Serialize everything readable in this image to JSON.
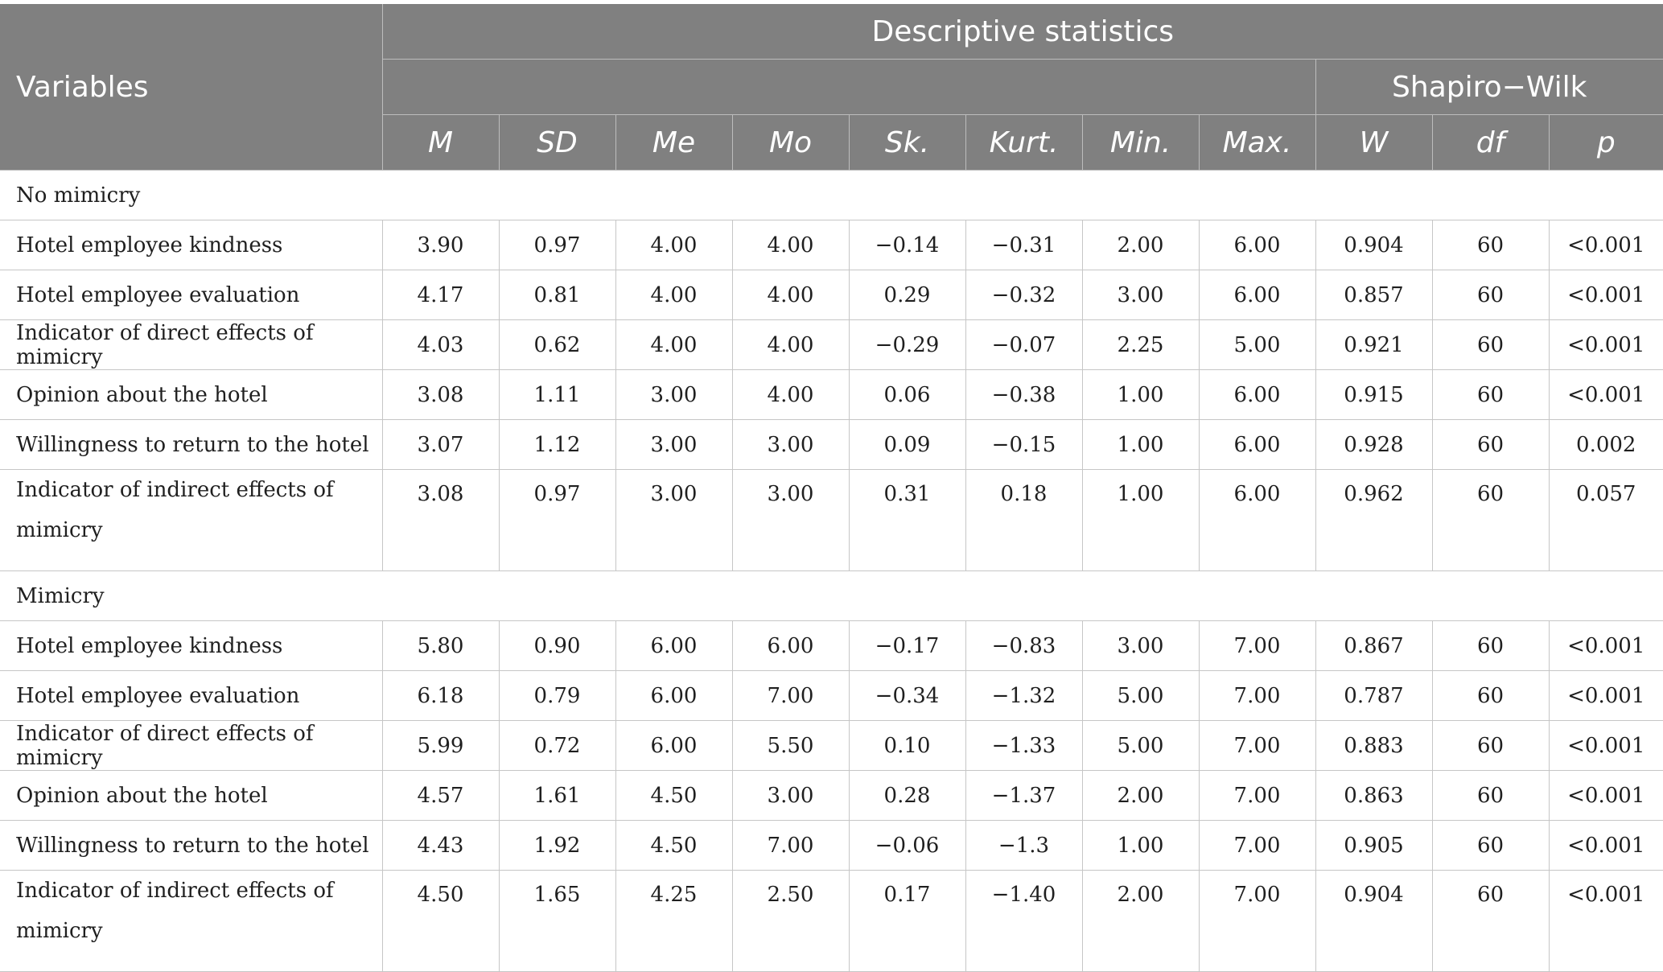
{
  "header": {
    "variables": "Variables",
    "descriptive": "Descriptive statistics",
    "shapiro": "Shapiro−Wilk",
    "columns": [
      "M",
      "SD",
      "Me",
      "Mo",
      "Sk.",
      "Kurt.",
      "Min.",
      "Max.",
      "W",
      "df",
      "p"
    ]
  },
  "groups": [
    {
      "name": "No mimicry",
      "rows": [
        {
          "label": "Hotel employee kindness",
          "values": [
            "3.90",
            "0.97",
            "4.00",
            "4.00",
            "−0.14",
            "−0.31",
            "2.00",
            "6.00",
            "0.904",
            "60",
            "<0.001"
          ]
        },
        {
          "label": "Hotel employee evaluation",
          "values": [
            "4.17",
            "0.81",
            "4.00",
            "4.00",
            "0.29",
            "−0.32",
            "3.00",
            "6.00",
            "0.857",
            "60",
            "<0.001"
          ]
        },
        {
          "label": "Indicator of direct effects of mimicry",
          "values": [
            "4.03",
            "0.62",
            "4.00",
            "4.00",
            "−0.29",
            "−0.07",
            "2.25",
            "5.00",
            "0.921",
            "60",
            "<0.001"
          ]
        },
        {
          "label": "Opinion about the hotel",
          "values": [
            "3.08",
            "1.11",
            "3.00",
            "4.00",
            "0.06",
            "−0.38",
            "1.00",
            "6.00",
            "0.915",
            "60",
            "<0.001"
          ]
        },
        {
          "label": "Willingness to return to the hotel",
          "values": [
            "3.07",
            "1.12",
            "3.00",
            "3.00",
            "0.09",
            "−0.15",
            "1.00",
            "6.00",
            "0.928",
            "60",
            "0.002"
          ]
        },
        {
          "label": "Indicator of indirect effects of mimicry",
          "values": [
            "3.08",
            "0.97",
            "3.00",
            "3.00",
            "0.31",
            "0.18",
            "1.00",
            "6.00",
            "0.962",
            "60",
            "0.057"
          ]
        }
      ]
    },
    {
      "name": "Mimicry",
      "rows": [
        {
          "label": "Hotel employee kindness",
          "values": [
            "5.80",
            "0.90",
            "6.00",
            "6.00",
            "−0.17",
            "−0.83",
            "3.00",
            "7.00",
            "0.867",
            "60",
            "<0.001"
          ]
        },
        {
          "label": "Hotel employee evaluation",
          "values": [
            "6.18",
            "0.79",
            "6.00",
            "7.00",
            "−0.34",
            "−1.32",
            "5.00",
            "7.00",
            "0.787",
            "60",
            "<0.001"
          ]
        },
        {
          "label": "Indicator of direct effects of mimicry",
          "values": [
            "5.99",
            "0.72",
            "6.00",
            "5.50",
            "0.10",
            "−1.33",
            "5.00",
            "7.00",
            "0.883",
            "60",
            "<0.001"
          ]
        },
        {
          "label": "Opinion about the hotel",
          "values": [
            "4.57",
            "1.61",
            "4.50",
            "3.00",
            "0.28",
            "−1.37",
            "2.00",
            "7.00",
            "0.863",
            "60",
            "<0.001"
          ]
        },
        {
          "label": "Willingness to return to the hotel",
          "values": [
            "4.43",
            "1.92",
            "4.50",
            "7.00",
            "−0.06",
            "−1.3",
            "1.00",
            "7.00",
            "0.905",
            "60",
            "<0.001"
          ]
        },
        {
          "label": "Indicator of indirect effects of mimicry",
          "values": [
            "4.50",
            "1.65",
            "4.25",
            "2.50",
            "0.17",
            "−1.40",
            "2.00",
            "7.00",
            "0.904",
            "60",
            "<0.001"
          ]
        }
      ]
    }
  ]
}
